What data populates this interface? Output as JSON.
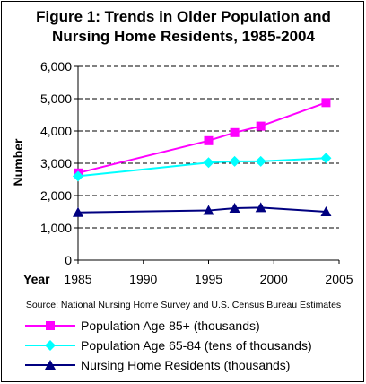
{
  "chart_data": {
    "type": "line",
    "title_lines": [
      "Figure 1: Trends in Older Population and",
      "Nursing Home Residents, 1985-2004"
    ],
    "xlabel": "Year",
    "ylabel": "Number",
    "xlim": [
      1985,
      2005
    ],
    "ylim": [
      0,
      6000
    ],
    "x_ticks": [
      "1985",
      "1990",
      "1995",
      "2000",
      "2005"
    ],
    "y_ticks": [
      "0",
      "1,000",
      "2,000",
      "3,000",
      "4,000",
      "5,000",
      "6,000"
    ],
    "grid": "horizontal-dashed",
    "legend_position": "bottom",
    "series": [
      {
        "name": "Population Age 85+ (thousands)",
        "color": "#ff00ff",
        "line_color": "#ff00ff",
        "marker": "square",
        "x": [
          1985,
          1995,
          1997,
          1999,
          2004
        ],
        "y": [
          2700,
          3700,
          3950,
          4150,
          4880
        ]
      },
      {
        "name": "Population Age 65-84 (tens of thousands)",
        "color": "#00ffff",
        "line_color": "#00ffff",
        "marker": "diamond",
        "x": [
          1985,
          1995,
          1997,
          1999,
          2004
        ],
        "y": [
          2600,
          3020,
          3060,
          3060,
          3160
        ]
      },
      {
        "name": "Nursing Home Residents (thousands)",
        "color": "#000080",
        "line_color": "#000080",
        "marker": "triangle",
        "x": [
          1985,
          1995,
          1997,
          1999,
          2004
        ],
        "y": [
          1480,
          1540,
          1610,
          1630,
          1500
        ]
      }
    ],
    "source": "Source: National Nursing Home Survey and U.S. Census Bureau Estimates"
  }
}
